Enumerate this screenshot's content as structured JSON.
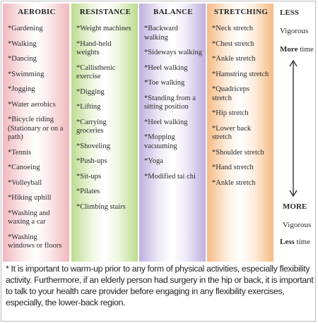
{
  "columns": [
    {
      "title": "AEROBIC",
      "items": [
        "*Gardening",
        "*Walking",
        "*Dancing",
        "*Swimming",
        "*Jogging",
        "*Water aerobics",
        "*Bicycle riding (Stationary or on a path)",
        "*Tennis",
        "*Canoeing",
        "*Volleyball",
        "*Hiking uphill",
        "*Washing and waxing a car",
        "*Washing windows or floors"
      ]
    },
    {
      "title": "RESISTANCE",
      "items": [
        "*Weight machines",
        "*Hand-held weights",
        "*Callisthenic exercise",
        "*Digging",
        "*Lifting",
        "*Carrying groceries",
        "*Shoveling",
        "*Push-ups",
        "*Sit-ups",
        "*Pilates",
        "*Climbing stairs"
      ]
    },
    {
      "title": "BALANCE",
      "items": [
        "*Backward walking",
        "*Sideways walking",
        "*Heel walking",
        "*Toe walking",
        "*Standing from a sitting position",
        "*Heel walking",
        "*Mopping vacuuming",
        "*Yoga",
        "*Modified tai chi"
      ]
    },
    {
      "title": "STRETCHING",
      "items": [
        "*Neck stretch",
        "*Chest stretch",
        "*Ankle stretch",
        "*Hamstring stretch",
        "*Quadriceps stretch",
        "*Hip stretch",
        "*Lower back stretch",
        "*Shoulder stretch",
        "*Hand stretch",
        "*Ankle stretch"
      ]
    }
  ],
  "scale": {
    "top": {
      "level": "LESS",
      "intensity": "Vigorous",
      "time": {
        "bold": "More",
        "rest": "time"
      }
    },
    "bottom": {
      "level": "MORE",
      "intensity": "Vigorous",
      "time": {
        "bold": "Less",
        "rest": "time"
      }
    }
  },
  "footnote": "* It is important to warm-up prior to any form of physical activities, especially flexibility activity. Furthermore, if an elderly person had surgery in the hip or back, it is important to talk to your health care provider before engaging in any flexibility exercises, especially, the lower-back region."
}
